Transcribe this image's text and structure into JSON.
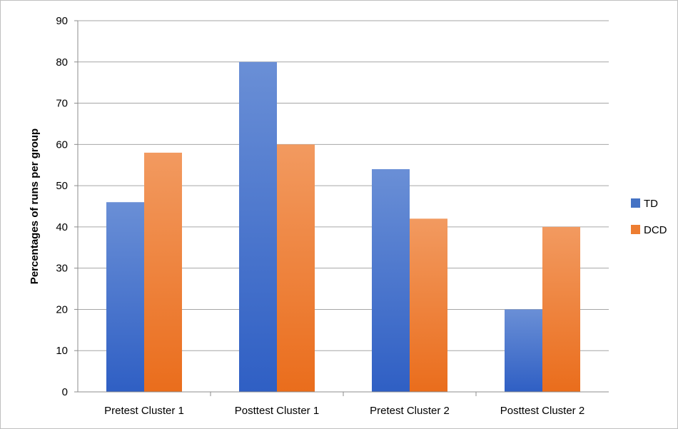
{
  "chart_data": {
    "type": "bar",
    "title": "",
    "xlabel": "",
    "ylabel": "Percentages of runs per group",
    "ylim": [
      0,
      90
    ],
    "y_ticks": [
      0,
      10,
      20,
      30,
      40,
      50,
      60,
      70,
      80,
      90
    ],
    "grid": true,
    "legend_position": "right",
    "categories": [
      "Pretest Cluster 1",
      "Posttest Cluster 1",
      "Pretest Cluster 2",
      "Posttest Cluster 2"
    ],
    "series": [
      {
        "name": "TD",
        "values": [
          46,
          80,
          54,
          20
        ],
        "color_top": "#6a8fd6",
        "color_bottom": "#2f5fc4",
        "legend_color": "#4472c4"
      },
      {
        "name": "DCD",
        "values": [
          58,
          60,
          42,
          40
        ],
        "color_top": "#f29a60",
        "color_bottom": "#ea6d1c",
        "legend_color": "#ed7d31"
      }
    ]
  }
}
